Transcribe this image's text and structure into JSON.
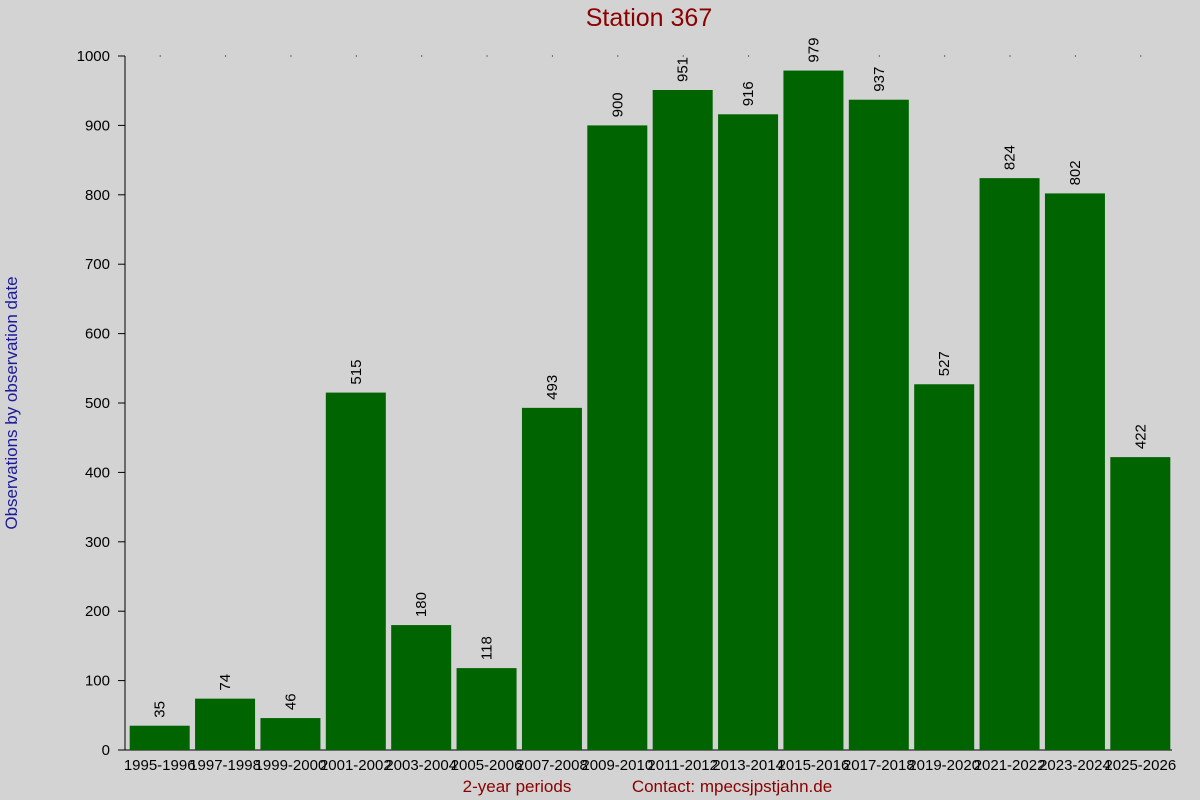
{
  "chart_data": {
    "type": "bar",
    "title": "Station 367",
    "categories": [
      "1995-1996",
      "1997-1998",
      "1999-2000",
      "2001-2002",
      "2003-2004",
      "2005-2006",
      "2007-2008",
      "2009-2010",
      "2011-2012",
      "2013-2014",
      "2015-2016",
      "2017-2018",
      "2019-2020",
      "2021-2022",
      "2023-2024",
      "2025-2026"
    ],
    "values": [
      35,
      74,
      46,
      515,
      180,
      118,
      493,
      900,
      951,
      916,
      979,
      937,
      527,
      824,
      802,
      422
    ],
    "color": "#006400",
    "ylim": [
      0,
      1000
    ],
    "yticks": [
      0,
      100,
      200,
      300,
      400,
      500,
      600,
      700,
      800,
      900,
      1000
    ],
    "y_label": "Observations by observation date",
    "x_label": "2-year periods",
    "contact": "Contact: mpecsjpstjahn.de"
  }
}
